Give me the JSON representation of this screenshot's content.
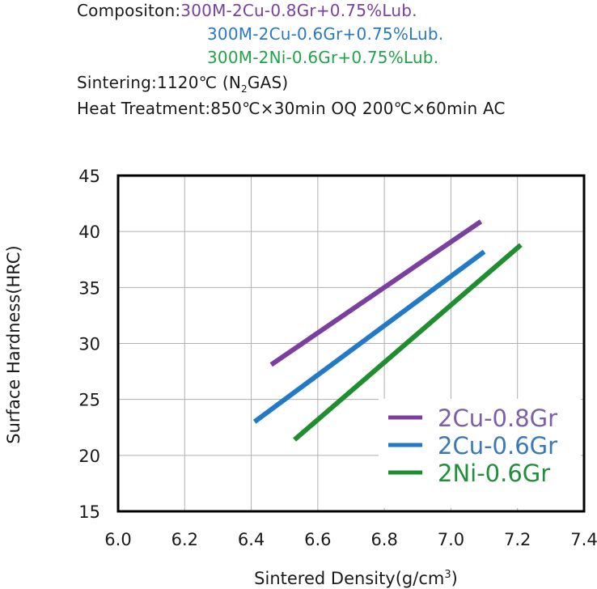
{
  "header": {
    "composition_label": "Compositon:",
    "compositions": [
      {
        "text": "300M-2Cu-0.8Gr+0.75%Lub.",
        "color": "#7b3fa0"
      },
      {
        "text": "300M-2Cu-0.6Gr+0.75%Lub.",
        "color": "#2979c2"
      },
      {
        "text": "300M-2Ni-0.6Gr+0.75%Lub.",
        "color": "#22a34b"
      }
    ],
    "sintering_label": "Sintering:1120℃ (N",
    "sintering_sub": "2",
    "sintering_tail": "GAS)",
    "heat_treatment": "Heat Treatment:850℃×30min OQ 200℃×60min AC"
  },
  "chart_data": {
    "type": "line",
    "xlabel": "Sintered Density(g/cm",
    "xlabel_sup": "3",
    "xlabel_tail": ")",
    "ylabel": "Surface Hardness(HRC)",
    "xlim": [
      6.0,
      7.4
    ],
    "ylim": [
      15,
      45
    ],
    "xticks": [
      "6.0",
      "6.2",
      "6.4",
      "6.6",
      "6.8",
      "7.0",
      "7.2",
      "7.4"
    ],
    "yticks": [
      "15",
      "20",
      "25",
      "30",
      "35",
      "40",
      "45"
    ],
    "grid": true,
    "legend_position": "bottom-right",
    "series": [
      {
        "name": "2Cu-0.8Gr",
        "color": "#7b3fa0",
        "label_color": "#7b5fa8",
        "x": [
          6.46,
          7.09
        ],
        "y": [
          28.1,
          40.9
        ]
      },
      {
        "name": "2Cu-0.6Gr",
        "color": "#2179c7",
        "label_color": "#3a78b8",
        "x": [
          6.41,
          7.1
        ],
        "y": [
          23.0,
          38.2
        ]
      },
      {
        "name": "2Ni-0.6Gr",
        "color": "#1e8e2e",
        "label_color": "#1f8f3a",
        "x": [
          6.53,
          7.21
        ],
        "y": [
          21.4,
          38.8
        ]
      }
    ]
  }
}
